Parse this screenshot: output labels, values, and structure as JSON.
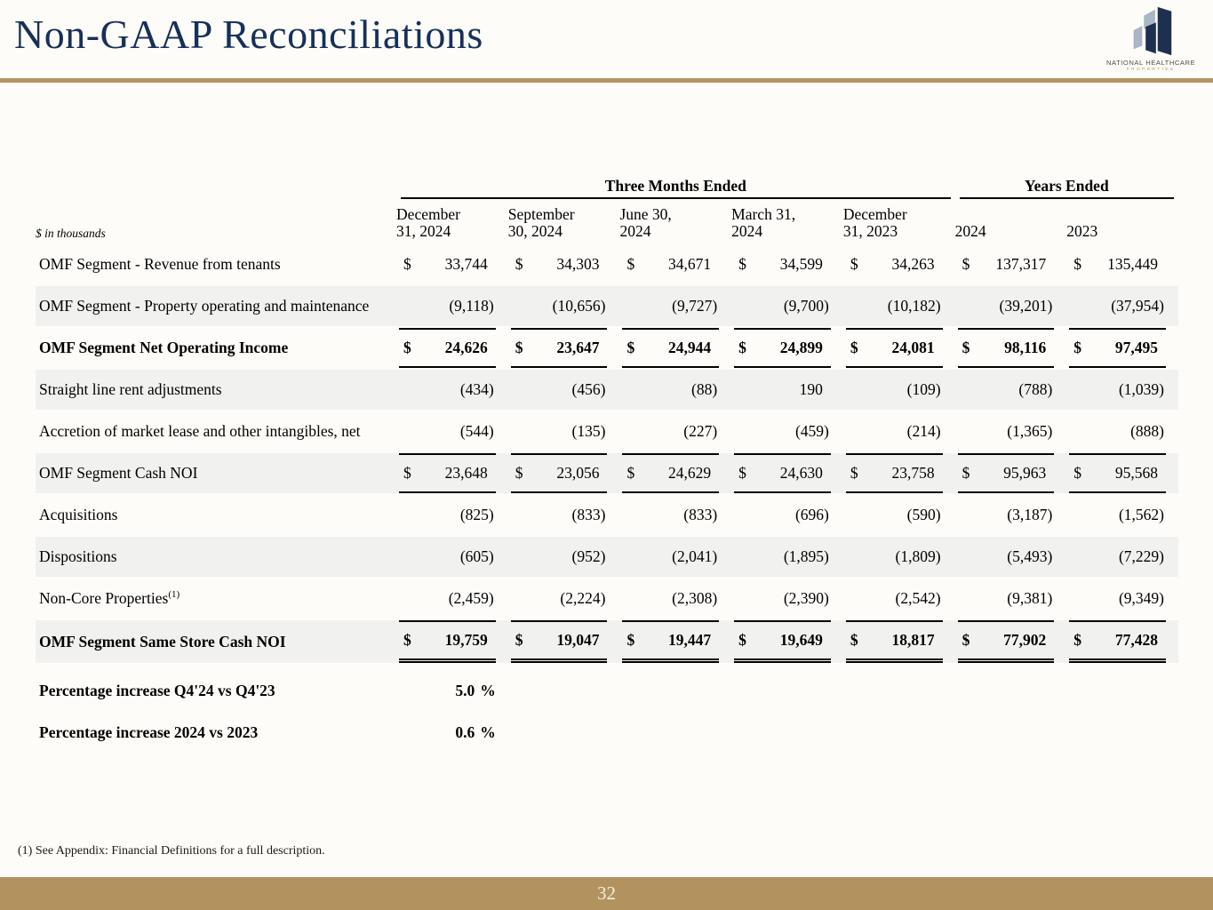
{
  "page": {
    "title": "Non-GAAP Reconciliations",
    "page_number": "32",
    "footnote": "(1) See Appendix: Financial Definitions for a full description.",
    "colors": {
      "accent_gold": "#b29560",
      "title_navy": "#16305a",
      "row_shade": "#f1f1ef",
      "logo_navy": "#1d3050",
      "logo_light_blue": "#a9b6c6"
    }
  },
  "logo": {
    "line1": "NATIONAL HEALTHCARE",
    "line2": "PROPERTIES"
  },
  "table": {
    "units_note": "$ in thousands",
    "group_headers": [
      {
        "label": "Three Months Ended",
        "span": 5
      },
      {
        "label": "Years Ended",
        "span": 2
      }
    ],
    "columns": [
      {
        "line1": "December",
        "line2": "31, 2024"
      },
      {
        "line1": "September",
        "line2": "30, 2024"
      },
      {
        "line1": "June 30,",
        "line2": "2024"
      },
      {
        "line1": "March 31,",
        "line2": "2024"
      },
      {
        "line1": "December",
        "line2": "31, 2023"
      },
      {
        "line1": "",
        "line2": "2024"
      },
      {
        "line1": "",
        "line2": "2023"
      }
    ],
    "rows": [
      {
        "label": "OMF Segment - Revenue from tenants",
        "dollar": true,
        "values": [
          "33,744",
          "34,303",
          "34,671",
          "34,599",
          "34,263",
          "137,317",
          "135,449"
        ]
      },
      {
        "label": "OMF Segment - Property operating and maintenance",
        "shaded": true,
        "values": [
          "(9,118)",
          "(10,656)",
          "(9,727)",
          "(9,700)",
          "(10,182)",
          "(39,201)",
          "(37,954)"
        ]
      },
      {
        "label": "OMF Segment Net Operating Income",
        "dollar": true,
        "bold": true,
        "rule": "subtotal",
        "values": [
          "24,626",
          "23,647",
          "24,944",
          "24,899",
          "24,081",
          "98,116",
          "97,495"
        ]
      },
      {
        "label": "Straight line rent adjustments",
        "shaded": true,
        "values": [
          "(434)",
          "(456)",
          "(88)",
          "190",
          "(109)",
          "(788)",
          "(1,039)"
        ]
      },
      {
        "label": "Accretion of market lease and other intangibles, net",
        "values": [
          "(544)",
          "(135)",
          "(227)",
          "(459)",
          "(214)",
          "(1,365)",
          "(888)"
        ]
      },
      {
        "label": "OMF Segment Cash NOI",
        "dollar": true,
        "shaded": true,
        "rule": "subtotal",
        "values": [
          "23,648",
          "23,056",
          "24,629",
          "24,630",
          "23,758",
          "95,963",
          "95,568"
        ]
      },
      {
        "label": "Acquisitions",
        "values": [
          "(825)",
          "(833)",
          "(833)",
          "(696)",
          "(590)",
          "(3,187)",
          "(1,562)"
        ]
      },
      {
        "label": "Dispositions",
        "shaded": true,
        "values": [
          "(605)",
          "(952)",
          "(2,041)",
          "(1,895)",
          "(1,809)",
          "(5,493)",
          "(7,229)"
        ]
      },
      {
        "label": "Non-Core Properties",
        "sup": "(1)",
        "values": [
          "(2,459)",
          "(2,224)",
          "(2,308)",
          "(2,390)",
          "(2,542)",
          "(9,381)",
          "(9,349)"
        ]
      },
      {
        "label": "OMF Segment Same Store Cash NOI",
        "dollar": true,
        "bold": true,
        "shaded": true,
        "rule": "total",
        "values": [
          "19,759",
          "19,047",
          "19,447",
          "19,649",
          "18,817",
          "77,902",
          "77,428"
        ]
      }
    ],
    "summary_rows": [
      {
        "label": "Percentage increase Q4'24 vs Q4'23",
        "value": "5.0",
        "unit": "%"
      },
      {
        "label": "Percentage increase 2024 vs 2023",
        "value": "0.6",
        "unit": "%"
      }
    ]
  }
}
